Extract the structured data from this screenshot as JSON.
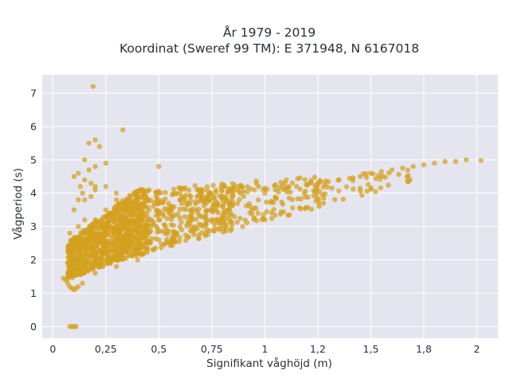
{
  "chart_data": {
    "type": "scatter",
    "title": "År 1979 - 2019",
    "subtitle": "Koordinat (Sweref 99 TM): E 371948, N 6167018",
    "xlabel": "Signifikant våghöjd (m)",
    "ylabel": "Vågperiod (s)",
    "xlim": [
      -0.05,
      2.1
    ],
    "ylim": [
      -0.35,
      7.55
    ],
    "x_ticks": [
      0,
      0.25,
      0.5,
      0.75,
      1,
      1.25,
      1.5,
      1.75,
      2
    ],
    "x_tick_labels": [
      "0",
      "0,25",
      "0,5",
      "0,75",
      "1",
      "1,2",
      "1,5",
      "1,8",
      "2"
    ],
    "y_ticks": [
      0,
      1,
      2,
      3,
      4,
      5,
      6,
      7
    ],
    "y_tick_labels": [
      "0",
      "1",
      "2",
      "3",
      "4",
      "5",
      "6",
      "7"
    ],
    "grid": true,
    "legend": "none",
    "colors": {
      "points": "#d4a11e",
      "plot_background": "#e5e5ef",
      "grid": "#ffffff"
    },
    "series": [
      {
        "x": [
          0.08,
          0.09,
          0.1,
          0.11,
          0.05,
          0.06,
          0.07,
          0.08,
          0.09,
          0.1,
          0.11,
          0.12,
          0.14,
          0.09,
          0.1,
          0.12,
          0.15,
          0.1,
          0.12,
          0.14,
          0.18,
          0.1,
          0.12,
          0.15,
          0.2,
          0.25,
          0.12,
          0.15,
          0.2,
          0.25,
          0.3,
          0.15,
          0.2,
          0.25,
          0.3,
          0.35,
          0.4,
          0.2,
          0.25,
          0.3,
          0.35,
          0.4,
          0.45,
          0.5,
          0.25,
          0.3,
          0.35,
          0.4,
          0.45,
          0.5,
          0.55,
          0.6,
          0.35,
          0.4,
          0.45,
          0.5,
          0.55,
          0.6,
          0.65,
          0.7,
          0.5,
          0.6,
          0.7,
          0.75,
          0.8,
          0.7,
          0.8,
          0.85,
          0.9,
          0.95,
          1.0,
          0.9,
          1.0,
          1.05,
          1.1,
          1.15,
          1.2,
          1.1,
          1.2,
          1.25,
          1.3,
          1.35,
          1.4,
          1.45,
          1.5,
          1.55,
          1.6,
          1.65,
          1.7,
          1.75,
          1.8,
          1.85,
          1.9,
          1.95,
          2.02,
          0.1,
          0.12,
          0.15,
          0.17,
          0.2,
          0.22,
          0.13,
          0.15,
          0.18,
          0.2,
          0.17,
          0.2,
          0.25,
          0.19,
          0.33,
          0.5,
          0.15,
          0.2,
          0.25,
          0.3,
          0.08,
          0.1,
          0.2,
          0.3,
          0.4
        ],
        "y": [
          0.0,
          0.0,
          0.0,
          0.0,
          1.45,
          1.4,
          1.3,
          1.2,
          1.15,
          1.1,
          1.15,
          1.2,
          1.3,
          2.0,
          2.5,
          3.0,
          3.2,
          3.5,
          3.8,
          4.0,
          3.9,
          1.6,
          1.7,
          1.8,
          1.9,
          2.0,
          2.5,
          2.8,
          3.2,
          3.5,
          3.8,
          2.0,
          2.2,
          2.4,
          2.6,
          3.0,
          3.5,
          2.6,
          2.8,
          3.0,
          3.2,
          3.5,
          3.8,
          4.0,
          2.2,
          2.4,
          2.6,
          2.8,
          3.0,
          3.2,
          3.5,
          3.8,
          2.8,
          3.0,
          3.2,
          3.4,
          3.6,
          3.8,
          3.9,
          4.0,
          2.6,
          3.0,
          3.3,
          3.5,
          3.6,
          3.8,
          3.9,
          4.0,
          4.05,
          4.1,
          4.15,
          3.9,
          4.0,
          4.1,
          4.15,
          4.2,
          4.25,
          4.15,
          4.25,
          4.3,
          4.35,
          4.4,
          4.45,
          4.5,
          4.6,
          4.65,
          4.7,
          4.75,
          4.8,
          4.85,
          4.9,
          4.95,
          4.95,
          5.0,
          4.98,
          4.5,
          4.6,
          5.0,
          5.5,
          5.6,
          5.4,
          4.2,
          4.4,
          4.3,
          4.2,
          4.7,
          4.8,
          4.9,
          7.2,
          5.9,
          4.8,
          3.8,
          4.1,
          4.2,
          4.0,
          2.8,
          2.3,
          1.6,
          1.8,
          2.0
        ]
      }
    ]
  }
}
